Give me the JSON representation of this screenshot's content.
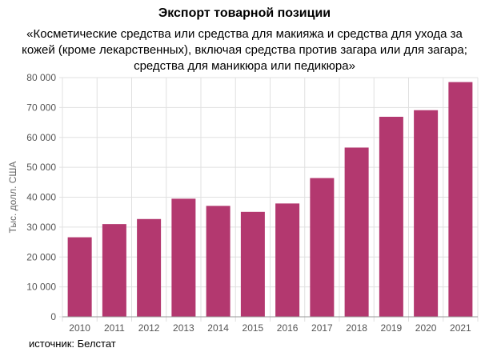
{
  "chart_data": {
    "type": "bar",
    "title": "Экспорт товарной позиции",
    "subtitle": "«Косметические средства или средства для макияжа и средства для ухода за кожей (кроме лекарственных), включая средства против загара или для загара; средства для маникюра или педикюра»",
    "xlabel": "",
    "ylabel": "Тыс. долл. США",
    "categories": [
      "2010",
      "2011",
      "2012",
      "2013",
      "2014",
      "2015",
      "2016",
      "2017",
      "2018",
      "2019",
      "2020",
      "2021"
    ],
    "values": [
      26600,
      31000,
      32700,
      39500,
      37100,
      35100,
      37900,
      46400,
      56600,
      66900,
      69100,
      78500
    ],
    "ylim": [
      0,
      80000
    ],
    "yticks": [
      0,
      10000,
      20000,
      30000,
      40000,
      50000,
      60000,
      70000,
      80000
    ],
    "ytick_labels": [
      "0",
      "10 000",
      "20 000",
      "30 000",
      "40 000",
      "50 000",
      "60 000",
      "70 000",
      "80 000"
    ],
    "grid": true,
    "bar_color": "#b3386f",
    "source": "источник: Белстат"
  }
}
